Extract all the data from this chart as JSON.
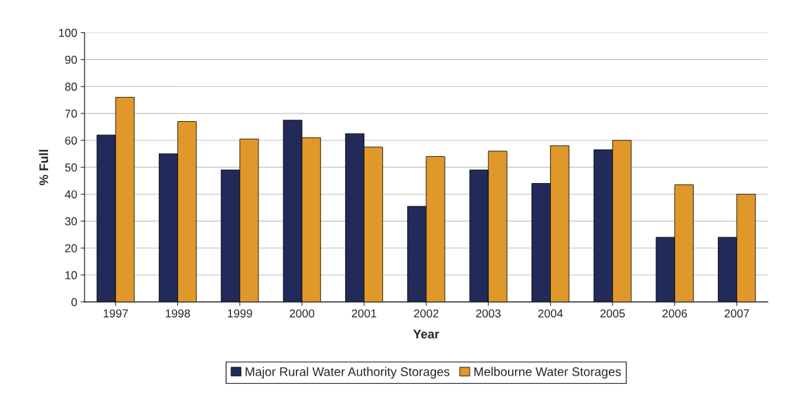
{
  "chart_data": {
    "type": "bar",
    "xlabel": "Year",
    "ylabel": "% Full",
    "categories": [
      "1997",
      "1998",
      "1999",
      "2000",
      "2001",
      "2002",
      "2003",
      "2004",
      "2005",
      "2006",
      "2007"
    ],
    "series": [
      {
        "name": "Major Rural Water Authority Storages",
        "color": "#222a5a",
        "values": [
          62,
          55,
          49,
          67.5,
          62.5,
          35.5,
          49,
          44,
          56.5,
          24,
          24
        ]
      },
      {
        "name": "Melbourne Water Storages",
        "color": "#e0982a",
        "values": [
          76,
          67,
          60.5,
          61,
          57.5,
          54,
          56,
          58,
          60,
          43.5,
          40
        ]
      }
    ],
    "ylim": [
      0,
      100
    ],
    "yticks": [
      0,
      10,
      20,
      30,
      40,
      50,
      60,
      70,
      80,
      90,
      100
    ],
    "grid": "y",
    "legend": "bottom"
  }
}
